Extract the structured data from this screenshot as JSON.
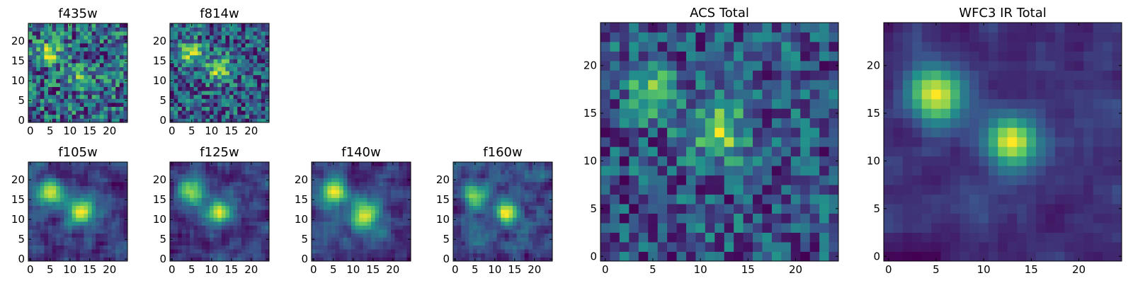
{
  "figure": {
    "colormap": [
      "#440154",
      "#3b528b",
      "#21918c",
      "#5ec962",
      "#fde725"
    ]
  },
  "chart_data": [
    {
      "type": "heatmap",
      "title": "f435w",
      "xlabel": "",
      "ylabel": "",
      "xlim": [
        0,
        24
      ],
      "ylim": [
        0,
        24
      ],
      "xticks": [
        0,
        5,
        10,
        15,
        20
      ],
      "yticks": [
        0,
        5,
        10,
        15,
        20
      ],
      "grid_size": 25,
      "seed": 11,
      "noise": 0.55,
      "smooth": 0,
      "blobs": [
        {
          "x": 5,
          "y": 17,
          "amp": 0.35,
          "sigma": 2
        },
        {
          "x": 13,
          "y": 11,
          "amp": 0.25,
          "sigma": 2
        }
      ]
    },
    {
      "type": "heatmap",
      "title": "f814w",
      "xlabel": "",
      "ylabel": "",
      "xlim": [
        0,
        24
      ],
      "ylim": [
        0,
        24
      ],
      "xticks": [
        0,
        5,
        10,
        15,
        20
      ],
      "yticks": [
        0,
        5,
        10,
        15,
        20
      ],
      "grid_size": 25,
      "seed": 23,
      "noise": 0.5,
      "smooth": 0,
      "blobs": [
        {
          "x": 5,
          "y": 17,
          "amp": 0.45,
          "sigma": 2
        },
        {
          "x": 12,
          "y": 13,
          "amp": 0.45,
          "sigma": 2.2
        }
      ]
    },
    {
      "type": "heatmap",
      "title": "f105w",
      "xlabel": "",
      "ylabel": "",
      "xlim": [
        0,
        24
      ],
      "ylim": [
        0,
        24
      ],
      "xticks": [
        0,
        5,
        10,
        15,
        20
      ],
      "yticks": [
        0,
        5,
        10,
        15,
        20
      ],
      "grid_size": 25,
      "seed": 37,
      "noise": 0.35,
      "smooth": 1,
      "blobs": [
        {
          "x": 5,
          "y": 17,
          "amp": 0.7,
          "sigma": 2.2
        },
        {
          "x": 13,
          "y": 12,
          "amp": 0.75,
          "sigma": 2.4
        }
      ]
    },
    {
      "type": "heatmap",
      "title": "f125w",
      "xlabel": "",
      "ylabel": "",
      "xlim": [
        0,
        24
      ],
      "ylim": [
        0,
        24
      ],
      "xticks": [
        0,
        5,
        10,
        15,
        20
      ],
      "yticks": [
        0,
        5,
        10,
        15,
        20
      ],
      "grid_size": 25,
      "seed": 41,
      "noise": 0.35,
      "smooth": 1,
      "blobs": [
        {
          "x": 5,
          "y": 17,
          "amp": 0.7,
          "sigma": 2.2
        },
        {
          "x": 12,
          "y": 12,
          "amp": 0.7,
          "sigma": 2.4
        }
      ]
    },
    {
      "type": "heatmap",
      "title": "f140w",
      "xlabel": "",
      "ylabel": "",
      "xlim": [
        0,
        24
      ],
      "ylim": [
        0,
        24
      ],
      "xticks": [
        0,
        5,
        10,
        15,
        20
      ],
      "yticks": [
        0,
        5,
        10,
        15,
        20
      ],
      "grid_size": 25,
      "seed": 53,
      "noise": 0.35,
      "smooth": 1,
      "blobs": [
        {
          "x": 5,
          "y": 17,
          "amp": 0.7,
          "sigma": 2.2
        },
        {
          "x": 13,
          "y": 11,
          "amp": 0.7,
          "sigma": 2.6
        }
      ]
    },
    {
      "type": "heatmap",
      "title": "f160w",
      "xlabel": "",
      "ylabel": "",
      "xlim": [
        0,
        24
      ],
      "ylim": [
        0,
        24
      ],
      "xticks": [
        0,
        5,
        10,
        15,
        20
      ],
      "yticks": [
        0,
        5,
        10,
        15,
        20
      ],
      "grid_size": 25,
      "seed": 67,
      "noise": 0.4,
      "smooth": 1,
      "blobs": [
        {
          "x": 5,
          "y": 16,
          "amp": 0.7,
          "sigma": 2.0
        },
        {
          "x": 13,
          "y": 12,
          "amp": 0.65,
          "sigma": 2.0
        }
      ]
    },
    {
      "type": "heatmap",
      "title": "ACS Total",
      "xlabel": "",
      "ylabel": "",
      "xlim": [
        0,
        24
      ],
      "ylim": [
        0,
        24
      ],
      "xticks": [
        0,
        5,
        10,
        15,
        20
      ],
      "yticks": [
        0,
        5,
        10,
        15,
        20
      ],
      "grid_size": 25,
      "seed": 79,
      "noise": 0.5,
      "smooth": 0,
      "blobs": [
        {
          "x": 5,
          "y": 17,
          "amp": 0.45,
          "sigma": 1.8
        },
        {
          "x": 12,
          "y": 13,
          "amp": 0.45,
          "sigma": 2.2
        }
      ]
    },
    {
      "type": "heatmap",
      "title": "WFC3 IR Total",
      "xlabel": "",
      "ylabel": "",
      "xlim": [
        0,
        24
      ],
      "ylim": [
        0,
        24
      ],
      "xticks": [
        0,
        5,
        10,
        15,
        20
      ],
      "yticks": [
        0,
        5,
        10,
        15,
        20
      ],
      "grid_size": 25,
      "seed": 97,
      "noise": 0.25,
      "smooth": 1,
      "blobs": [
        {
          "x": 5,
          "y": 17,
          "amp": 0.85,
          "sigma": 2.0
        },
        {
          "x": 13,
          "y": 12,
          "amp": 0.85,
          "sigma": 1.8
        }
      ]
    }
  ]
}
